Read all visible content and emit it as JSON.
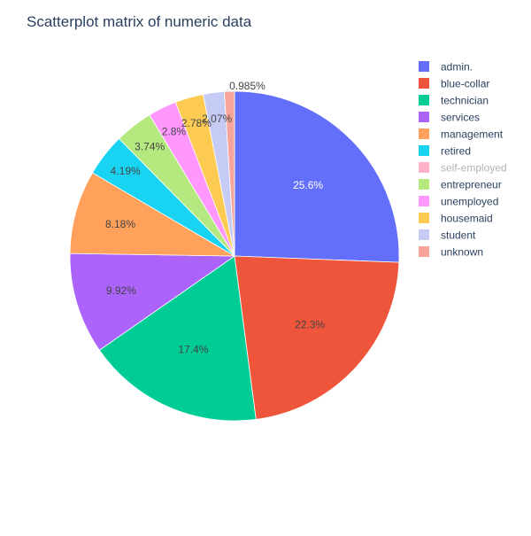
{
  "chart_data": {
    "type": "pie",
    "title": "Scatterplot matrix of numeric data",
    "legend_position": "right",
    "slices": [
      {
        "label": "admin.",
        "percent": 25.6,
        "label_text": "25.6%",
        "color": "#636efa"
      },
      {
        "label": "blue-collar",
        "percent": 22.3,
        "label_text": "22.3%",
        "color": "#ef553b"
      },
      {
        "label": "technician",
        "percent": 17.4,
        "label_text": "17.4%",
        "color": "#00cc96"
      },
      {
        "label": "services",
        "percent": 9.92,
        "label_text": "9.92%",
        "color": "#ab63fa"
      },
      {
        "label": "management",
        "percent": 8.18,
        "label_text": "8.18%",
        "color": "#ffa15a"
      },
      {
        "label": "retired",
        "percent": 4.19,
        "label_text": "4.19%",
        "color": "#19d3f3"
      },
      {
        "label": "self-employed",
        "percent": 0,
        "label_text": "",
        "color": "#ff6692",
        "legend_dimmed": true
      },
      {
        "label": "entrepreneur",
        "percent": 3.74,
        "label_text": "3.74%",
        "color": "#b6e880"
      },
      {
        "label": "unemployed",
        "percent": 2.8,
        "label_text": "2.8%",
        "color": "#ff97ff"
      },
      {
        "label": "housemaid",
        "percent": 2.78,
        "label_text": "2.78%",
        "color": "#fecb52"
      },
      {
        "label": "student",
        "percent": 2.07,
        "label_text": "2.07%",
        "color": "#c6cbf6"
      },
      {
        "label": "unknown",
        "percent": 0.985,
        "label_text": "0.985%",
        "color": "#f7a59a"
      }
    ]
  }
}
